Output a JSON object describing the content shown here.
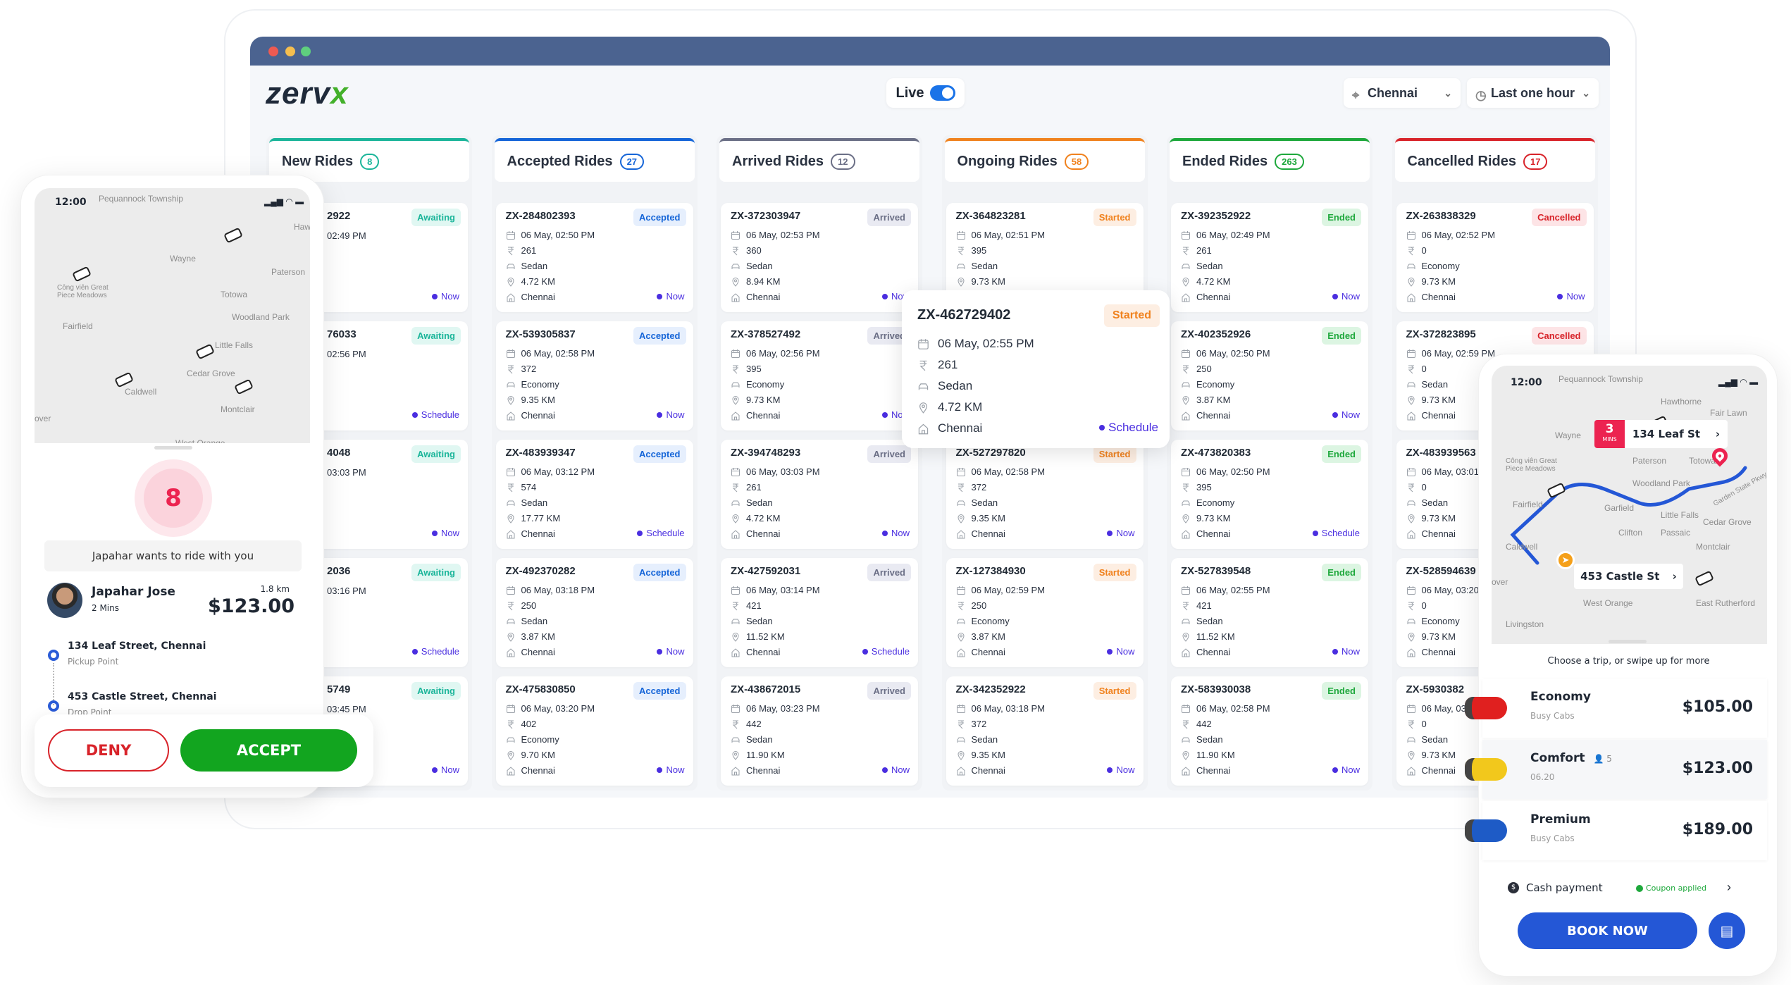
{
  "header": {
    "logo_main": "zerv",
    "logo_accent": "x",
    "live_label": "Live",
    "live_on": true,
    "city": "Chennai",
    "time_range": "Last one hour"
  },
  "colors": {
    "titlebar": "#4b6390",
    "now": "#4a2ee0",
    "accent_blue": "#1a73e8",
    "deny": "#d8232a",
    "accept": "#12a51f",
    "book": "#2457d6"
  },
  "columns": [
    {
      "title": "New Rides",
      "count": "8",
      "color": "#1bb59a",
      "badge_bg": "#e0f7f2",
      "partial": true,
      "cards": [
        {
          "id": "2922",
          "badge": "Awaiting",
          "time": "02:49 PM",
          "when": "Now"
        },
        {
          "id": "76033",
          "badge": "Awaiting",
          "time": "02:56 PM",
          "when": "Schedule"
        },
        {
          "id": "4048",
          "badge": "Awaiting",
          "time": "03:03 PM",
          "when": "Now"
        },
        {
          "id": "2036",
          "badge": "Awaiting",
          "time": "03:16 PM",
          "when": "Schedule"
        },
        {
          "id": "5749",
          "badge": "Awaiting",
          "time": "03:45 PM",
          "when": "Now"
        }
      ]
    },
    {
      "title": "Accepted Rides",
      "count": "27",
      "color": "#1565d8",
      "badge_bg": "#e6effd",
      "cards": [
        {
          "id": "ZX-284802393",
          "badge": "Accepted",
          "date": "06 May, 02:50 PM",
          "fare": "261",
          "type": "Sedan",
          "dist": "4.72 KM",
          "city": "Chennai",
          "when": "Now"
        },
        {
          "id": "ZX-539305837",
          "badge": "Accepted",
          "date": "06 May, 02:58 PM",
          "fare": "372",
          "type": "Economy",
          "dist": "9.35 KM",
          "city": "Chennai",
          "when": "Now"
        },
        {
          "id": "ZX-483939347",
          "badge": "Accepted",
          "date": "06 May, 03:12 PM",
          "fare": "574",
          "type": "Sedan",
          "dist": "17.77 KM",
          "city": "Chennai",
          "when": "Schedule"
        },
        {
          "id": "ZX-492370282",
          "badge": "Accepted",
          "date": "06 May, 03:18 PM",
          "fare": "250",
          "type": "Sedan",
          "dist": "3.87 KM",
          "city": "Chennai",
          "when": "Now"
        },
        {
          "id": "ZX-475830850",
          "badge": "Accepted",
          "date": "06 May, 03:20 PM",
          "fare": "402",
          "type": "Economy",
          "dist": "9.70 KM",
          "city": "Chennai",
          "when": "Now"
        }
      ]
    },
    {
      "title": "Arrived Rides",
      "count": "12",
      "color": "#6b6f86",
      "badge_bg": "#e9eaf2",
      "cards": [
        {
          "id": "ZX-372303947",
          "badge": "Arrived",
          "date": "06 May, 02:53 PM",
          "fare": "360",
          "type": "Sedan",
          "dist": "8.94 KM",
          "city": "Chennai",
          "when": "Now"
        },
        {
          "id": "ZX-378527492",
          "badge": "Arrived",
          "date": "06 May, 02:56 PM",
          "fare": "395",
          "type": "Economy",
          "dist": "9.73 KM",
          "city": "Chennai",
          "when": "Now"
        },
        {
          "id": "ZX-394748293",
          "badge": "Arrived",
          "date": "06 May, 03:03 PM",
          "fare": "261",
          "type": "Sedan",
          "dist": "4.72 KM",
          "city": "Chennai",
          "when": "Now"
        },
        {
          "id": "ZX-427592031",
          "badge": "Arrived",
          "date": "06 May, 03:14 PM",
          "fare": "421",
          "type": "Sedan",
          "dist": "11.52 KM",
          "city": "Chennai",
          "when": "Schedule"
        },
        {
          "id": "ZX-438672015",
          "badge": "Arrived",
          "date": "06 May, 03:23 PM",
          "fare": "442",
          "type": "Sedan",
          "dist": "11.90 KM",
          "city": "Chennai",
          "when": "Now"
        }
      ]
    },
    {
      "title": "Ongoing Rides",
      "count": "58",
      "color": "#f0821e",
      "badge_bg": "#fdeee2",
      "cards": [
        {
          "id": "ZX-364823281",
          "badge": "Started",
          "date": "06 May, 02:51 PM",
          "fare": "395",
          "type": "Sedan",
          "dist": "9.73 KM"
        },
        null,
        {
          "id": "ZX-527297820",
          "badge": "Started",
          "date": "06 May, 02:58 PM",
          "fare": "372",
          "type": "Sedan",
          "dist": "9.35 KM",
          "city": "Chennai",
          "when": "Now"
        },
        {
          "id": "ZX-127384930",
          "badge": "Started",
          "date": "06 May, 02:59 PM",
          "fare": "250",
          "type": "Economy",
          "dist": "3.87 KM",
          "city": "Chennai",
          "when": "Now"
        },
        {
          "id": "ZX-342352922",
          "badge": "Started",
          "date": "06 May, 03:18 PM",
          "fare": "372",
          "type": "Sedan",
          "dist": "9.35 KM",
          "city": "Chennai",
          "when": "Now"
        }
      ]
    },
    {
      "title": "Ended Rides",
      "count": "263",
      "color": "#1ea83c",
      "badge_bg": "#dcf5e2",
      "cards": [
        {
          "id": "ZX-392352922",
          "badge": "Ended",
          "date": "06 May, 02:49 PM",
          "fare": "261",
          "type": "Sedan",
          "dist": "4.72 KM",
          "city": "Chennai",
          "when": "Now"
        },
        {
          "id": "ZX-402352926",
          "badge": "Ended",
          "date": "06 May, 02:50 PM",
          "fare": "250",
          "type": "Economy",
          "dist": "3.87 KM",
          "city": "Chennai",
          "when": "Now"
        },
        {
          "id": "ZX-473820383",
          "badge": "Ended",
          "date": "06 May, 02:50 PM",
          "fare": "395",
          "type": "Economy",
          "dist": "9.73 KM",
          "city": "Chennai",
          "when": "Schedule"
        },
        {
          "id": "ZX-527839548",
          "badge": "Ended",
          "date": "06 May, 02:55 PM",
          "fare": "421",
          "type": "Sedan",
          "dist": "11.52 KM",
          "city": "Chennai",
          "when": "Now"
        },
        {
          "id": "ZX-583930038",
          "badge": "Ended",
          "date": "06 May, 02:58 PM",
          "fare": "442",
          "type": "Sedan",
          "dist": "11.90 KM",
          "city": "Chennai",
          "when": "Now"
        }
      ]
    },
    {
      "title": "Cancelled Rides",
      "count": "17",
      "color": "#d8232a",
      "badge_bg": "#fde4e6",
      "cards": [
        {
          "id": "ZX-263838329",
          "badge": "Cancelled",
          "date": "06 May, 02:52 PM",
          "fare": "0",
          "type": "Economy",
          "dist": "9.73 KM",
          "city": "Chennai",
          "when": "Now"
        },
        {
          "id": "ZX-372823895",
          "badge": "Cancelled",
          "date": "06 May, 02:59 PM",
          "fare": "0",
          "type": "Sedan",
          "dist": "9.73 KM",
          "city": "Chennai"
        },
        {
          "id": "ZX-483939563",
          "date": "06 May, 03:01",
          "fare": "0",
          "type": "Sedan",
          "dist": "9.73 KM",
          "city": "Chennai"
        },
        {
          "id": "ZX-528594639",
          "date": "06 May, 03:20",
          "fare": "0",
          "type": "Economy",
          "dist": "9.73 KM",
          "city": "Chennai"
        },
        {
          "id": "ZX-5930382",
          "date": "06 May, 03",
          "fare": "0",
          "type": "Sedan",
          "dist": "9.73 KM",
          "city": "Chennai"
        }
      ]
    }
  ],
  "tooltip": {
    "id": "ZX-462729402",
    "badge": "Started",
    "date": "06 May, 02:55 PM",
    "fare": "261",
    "type": "Sedan",
    "dist": "4.72 KM",
    "city": "Chennai",
    "when": "Schedule"
  },
  "map_labels": [
    "Pequannock Township",
    "Wayne",
    "Hawthorne",
    "Fair Lawn",
    "Paterson",
    "Totowa",
    "Woodland Park",
    "Công viên Great Piece Meadows",
    "Fairfield",
    "Garden State Pkwy",
    "Garfield",
    "Little Falls",
    "Clifton",
    "Passaic",
    "Cedar Grove",
    "Caldwell",
    "Montclair",
    "East Rutherford",
    "West Orange",
    "Livingston",
    "over"
  ],
  "driver_app": {
    "status_time": "12:00",
    "countdown": "8",
    "message": "Japahar wants to ride with you",
    "rider_name": "Japahar Jose",
    "eta": "2 Mins",
    "distance": "1.8 km",
    "fare": "$123.00",
    "pickup": {
      "address": "134 Leaf Street, Chennai",
      "label": "Pickup Point"
    },
    "drop": {
      "address": "453 Castle Street, Chennai",
      "label": "Drop Point"
    },
    "deny_label": "DENY",
    "accept_label": "ACCEPT"
  },
  "rider_app": {
    "status_time": "12:00",
    "eta_value": "3",
    "eta_unit": "MINS",
    "destination": "134 Leaf St",
    "origin": "453 Castle St",
    "prompt": "Choose a trip, or swipe up for more",
    "options": [
      {
        "name": "Economy",
        "sub": "Busy Cabs",
        "price": "$105.00",
        "car_color": "#e0201f"
      },
      {
        "name": "Comfort",
        "seats": "5",
        "sub": "06.20",
        "price": "$123.00",
        "car_color": "#f2c81c"
      },
      {
        "name": "Premium",
        "sub": "Busy Cabs",
        "price": "$189.00",
        "car_color": "#1e5bc6"
      }
    ],
    "payment": "Cash payment",
    "coupon": "Coupon applied",
    "book_label": "BOOK NOW"
  }
}
